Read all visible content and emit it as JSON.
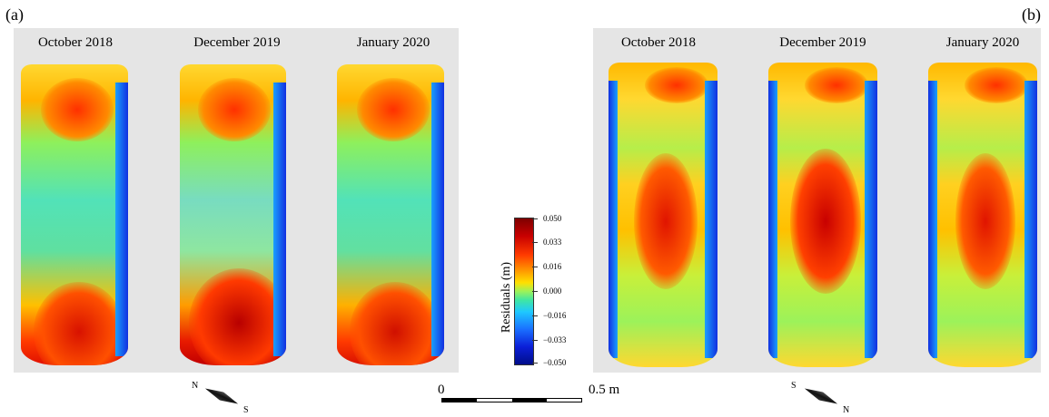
{
  "panels": {
    "a": {
      "label": "(a)",
      "columns": [
        {
          "title": "October 2018"
        },
        {
          "title": "December 2019"
        },
        {
          "title": "January 2020"
        }
      ],
      "compass": {
        "dir_start": "N",
        "dir_end": "S"
      }
    },
    "b": {
      "label": "(b)",
      "columns": [
        {
          "title": "October 2018"
        },
        {
          "title": "December 2019"
        },
        {
          "title": "January 2020"
        }
      ],
      "compass": {
        "dir_start": "S",
        "dir_end": "N"
      }
    }
  },
  "colorbar": {
    "title": "Residuals (m)",
    "ticks": [
      "0.050",
      "0.033",
      "0.016",
      "0.000",
      "−0.016",
      "−0.033",
      "−0.050"
    ],
    "colors": [
      "#7f0000",
      "#ff3b00",
      "#ffe000",
      "#3fe6a4",
      "#1a6fff",
      "#000d8a"
    ]
  },
  "scalebar": {
    "start_label": "0",
    "end_label": "0.5 m"
  }
}
